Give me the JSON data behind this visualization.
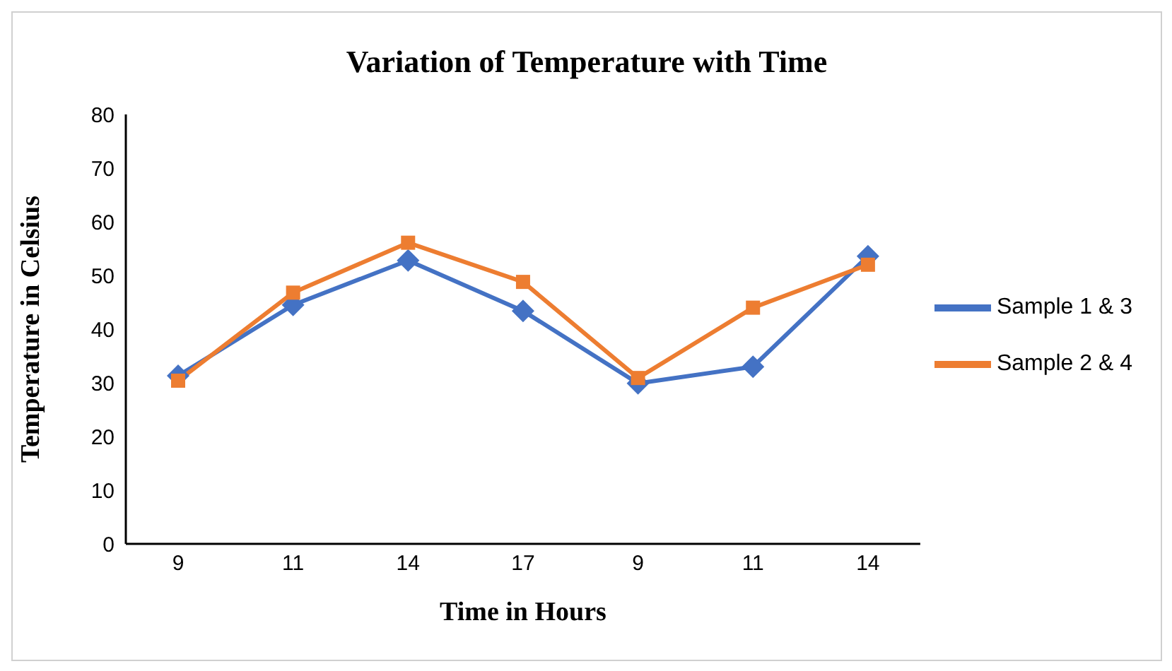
{
  "chart_data": {
    "type": "line",
    "title": "Variation of Temperature with Time",
    "xlabel": "Time in Hours",
    "ylabel": "Temperature in Celsius",
    "categories": [
      "9",
      "11",
      "14",
      "17",
      "9",
      "11",
      "14"
    ],
    "series": [
      {
        "name": "Sample 1 & 3",
        "color": "#4472c4",
        "marker": "diamond",
        "values": [
          31.3,
          44.5,
          52.8,
          43.4,
          29.9,
          33.0,
          53.6
        ]
      },
      {
        "name": "Sample 2 & 4",
        "color": "#ed7d31",
        "marker": "square",
        "values": [
          30.4,
          46.8,
          56.1,
          48.8,
          30.9,
          44.0,
          52.0
        ]
      }
    ],
    "ylim": [
      0,
      80
    ],
    "yticks": [
      0,
      10,
      20,
      30,
      40,
      50,
      60,
      70,
      80
    ],
    "grid": false,
    "legend": "right",
    "line_style": "solid"
  }
}
